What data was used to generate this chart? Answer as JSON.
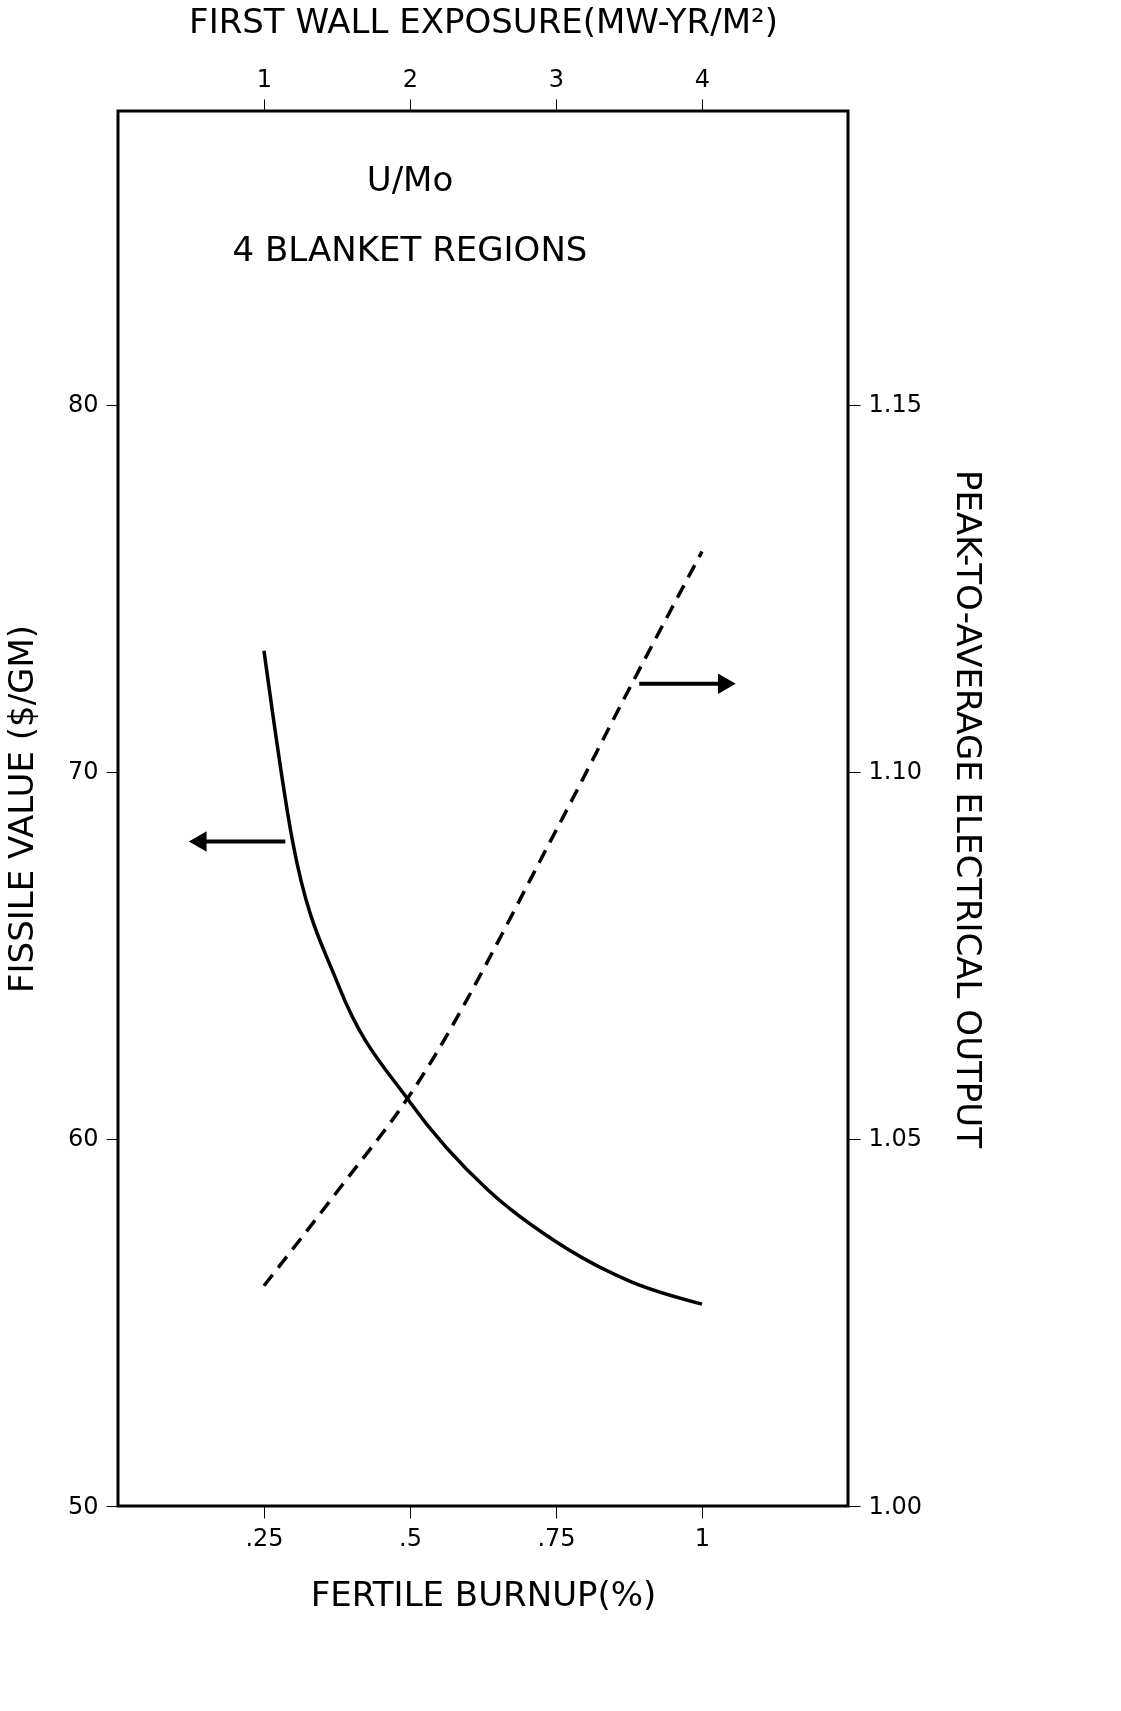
{
  "chart_data": {
    "type": "line",
    "x2label": "FIRST WALL EXPOSURE(MW-YR/M²)",
    "xlabel": "FERTILE BURNUP(%)",
    "ylabel": "FISSILE VALUE  ($/GM)",
    "y2label": "PEAK-TO-AVERAGE ELECTRICAL OUTPUT",
    "annotations": [
      "U/Mo",
      "4 BLANKET REGIONS"
    ],
    "xlim": [
      0,
      1.25
    ],
    "xticks": [
      {
        "value": 0.25,
        "label": ".25"
      },
      {
        "value": 0.5,
        "label": ".5"
      },
      {
        "value": 0.75,
        "label": ".75"
      },
      1
    ],
    "x2lim": [
      0,
      5
    ],
    "x2ticks": [
      1,
      2,
      3,
      4
    ],
    "ylim": [
      50,
      88
    ],
    "yticks": [
      50,
      60,
      70,
      80
    ],
    "y2lim": [
      1.0,
      1.19
    ],
    "y2ticks": [
      {
        "value": 1.0,
        "label": "1.00"
      },
      1.05,
      {
        "value": 1.1,
        "label": "1.10"
      },
      1.15
    ],
    "grid": false,
    "series": [
      {
        "color": "#000000",
        "line_style": "solid",
        "axis": "y",
        "x": [
          0.25,
          0.299,
          0.377,
          0.5,
          0.634,
          0.75,
          0.88,
          1.0
        ],
        "values": [
          73.3,
          68.1,
          64.2,
          61.0,
          58.6,
          57.2,
          56.1,
          55.5
        ]
      },
      {
        "color": "#000000",
        "line_style": "dashed",
        "axis": "y2",
        "x": [
          0.25,
          0.377,
          0.5,
          0.75,
          0.88,
          1.0
        ],
        "values": [
          1.03,
          1.043,
          1.056,
          1.092,
          1.112,
          1.13
        ]
      }
    ]
  }
}
